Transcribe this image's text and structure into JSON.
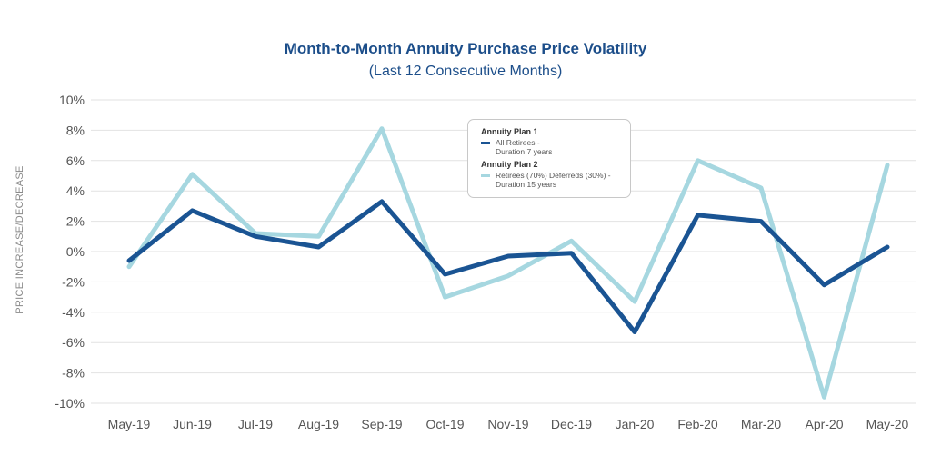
{
  "chart_data": {
    "type": "line",
    "title": "Month-to-Month Annuity Purchase Price Volatility",
    "subtitle": "(Last 12 Consecutive Months)",
    "xlabel": "",
    "ylabel": "PRICE INCREASE/DECREASE",
    "categories": [
      "May-19",
      "Jun-19",
      "Jul-19",
      "Aug-19",
      "Sep-19",
      "Oct-19",
      "Nov-19",
      "Dec-19",
      "Jan-20",
      "Feb-20",
      "Mar-20",
      "Apr-20",
      "May-20"
    ],
    "ylim": [
      -10,
      10
    ],
    "yticks": [
      10,
      8,
      6,
      4,
      2,
      0,
      -2,
      -4,
      -6,
      -8,
      -10
    ],
    "ytick_labels": [
      "10%",
      "8%",
      "6%",
      "4%",
      "2%",
      "0%",
      "-2%",
      "-4%",
      "-6%",
      "-8%",
      "-10%"
    ],
    "grid": true,
    "legend_position": "top-center",
    "series": [
      {
        "group": "Annuity Plan 1",
        "name": "All Retirees -\nDuration 7 years",
        "color": "#1a5493",
        "values": [
          -0.6,
          2.7,
          1.0,
          0.3,
          3.3,
          -1.5,
          -0.3,
          -0.1,
          -5.3,
          2.4,
          2.0,
          -2.2,
          0.3
        ]
      },
      {
        "group": "Annuity Plan 2",
        "name": "Retirees (70%) Deferreds (30%) -\nDuration 15 years",
        "color": "#a6d7e0",
        "values": [
          -1.0,
          5.1,
          1.2,
          1.0,
          8.1,
          -3.0,
          -1.6,
          0.7,
          -3.3,
          6.0,
          4.2,
          -9.6,
          5.7
        ]
      }
    ]
  }
}
